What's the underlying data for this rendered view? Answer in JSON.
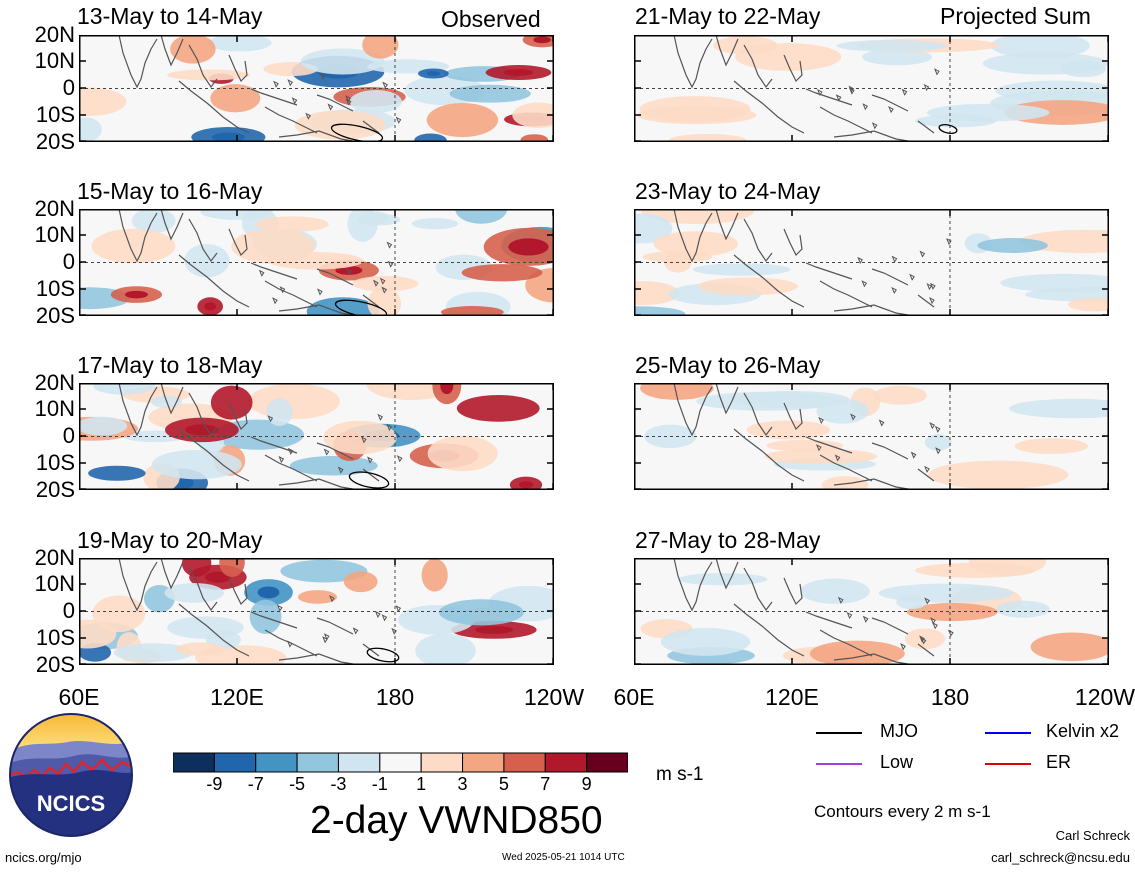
{
  "variable_title": "2-day VWND850",
  "units": "m s-1",
  "left_column_label": "Observed",
  "right_column_label": "Projected Sum",
  "panels_left": [
    {
      "dates": "13-May to 14-May"
    },
    {
      "dates": "15-May to 16-May"
    },
    {
      "dates": "17-May to 18-May"
    },
    {
      "dates": "19-May to 20-May"
    }
  ],
  "panels_right": [
    {
      "dates": "21-May to 22-May"
    },
    {
      "dates": "23-May to 24-May"
    },
    {
      "dates": "25-May to 26-May"
    },
    {
      "dates": "27-May to 28-May"
    }
  ],
  "lat_ticks": [
    "20N",
    "10N",
    "0",
    "10S",
    "20S"
  ],
  "lon_ticks_left": [
    "60E",
    "120E",
    "180",
    "120W"
  ],
  "lon_ticks_right": [
    "60E",
    "120E",
    "180",
    "120W"
  ],
  "colorbar": {
    "labels": [
      "-9",
      "-7",
      "-5",
      "-3",
      "-1",
      "1",
      "3",
      "5",
      "7",
      "9"
    ],
    "colors": [
      "#0d2f5e",
      "#2166ac",
      "#4393c3",
      "#92c5de",
      "#d1e5f0",
      "#f7f7f7",
      "#fddbc7",
      "#f4a582",
      "#d6604d",
      "#b2182b",
      "#67001f"
    ]
  },
  "legend": {
    "items": [
      {
        "label": "MJO",
        "color": "#000000"
      },
      {
        "label": "Kelvin x2",
        "color": "#0000ee"
      },
      {
        "label": "Low",
        "color": "#a040e0"
      },
      {
        "label": "ER",
        "color": "#e00000"
      }
    ],
    "contour_note": "Contours every 2 m s-1"
  },
  "logo_text": "NCICS",
  "footer": {
    "url": "ncics.org/mjo",
    "timestamp": "Wed 2025-05-21 1014 UTC",
    "author": "Carl Schreck",
    "email": "carl_schreck@ncsu.edu"
  }
}
